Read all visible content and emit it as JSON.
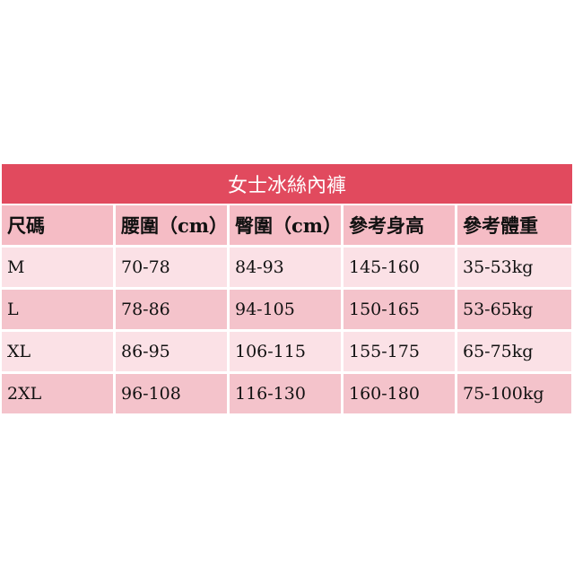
{
  "table": {
    "title": "女士冰絲內褲",
    "header": [
      "尺碼",
      "腰圍（cm）",
      "臀圍（cm）",
      "參考身高",
      "參考體重"
    ],
    "rows": [
      [
        "M",
        "70-78",
        "84-93",
        "145-160",
        "35-53kg"
      ],
      [
        "L",
        "78-86",
        "94-105",
        "150-165",
        "53-65kg"
      ],
      [
        "XL",
        "86-95",
        "106-115",
        "155-175",
        "65-75kg"
      ],
      [
        "2XL",
        "96-108",
        "116-130",
        "160-180",
        "75-100kg"
      ]
    ]
  }
}
